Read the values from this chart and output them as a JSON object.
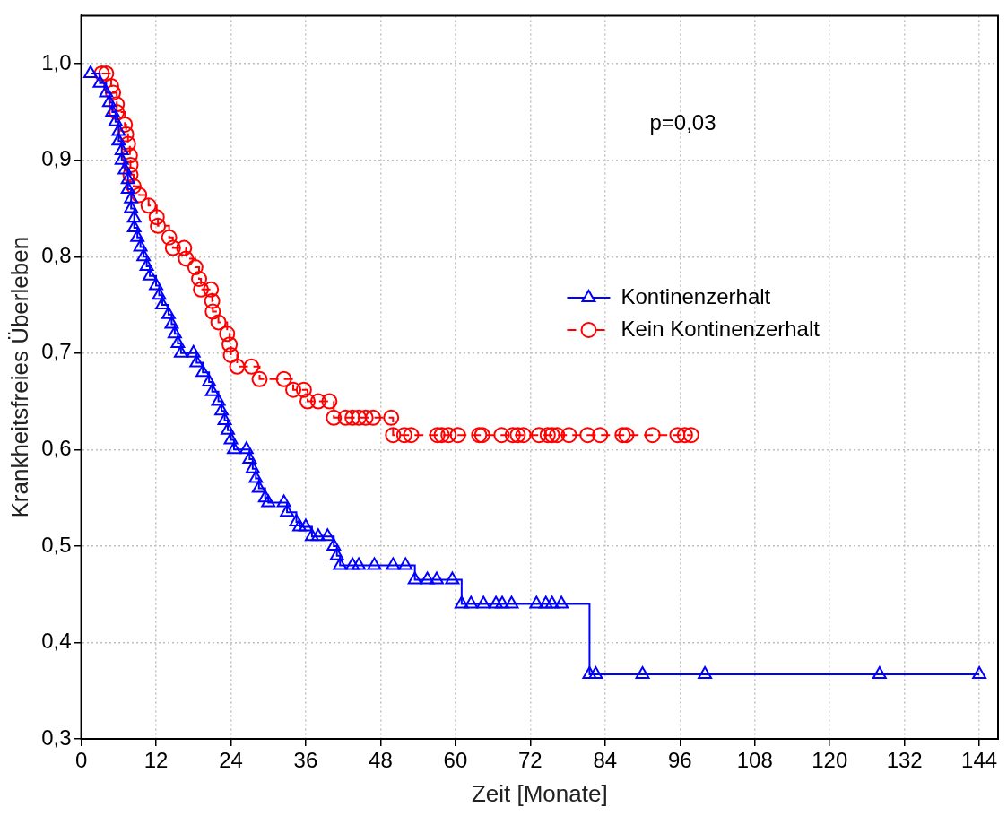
{
  "chart_data": {
    "type": "step",
    "xlabel": "Zeit [Monate]",
    "ylabel": "Krankheitsfreies Überleben",
    "xlim": [
      0,
      147
    ],
    "ylim": [
      0.3,
      1.05
    ],
    "xticks": [
      0,
      12,
      24,
      36,
      48,
      60,
      72,
      84,
      96,
      108,
      120,
      132,
      144
    ],
    "yticks": [
      {
        "value": 0.3,
        "label": "0,3"
      },
      {
        "value": 0.4,
        "label": "0,4"
      },
      {
        "value": 0.5,
        "label": "0,5"
      },
      {
        "value": 0.6,
        "label": "0,6"
      },
      {
        "value": 0.7,
        "label": "0,7"
      },
      {
        "value": 0.8,
        "label": "0,8"
      },
      {
        "value": 0.9,
        "label": "0,9"
      },
      {
        "value": 1.0,
        "label": "1,0"
      }
    ],
    "grid": true,
    "legend": "right",
    "annotations": [
      "p=0,03"
    ],
    "series": [
      {
        "name": "Kontinenzerhalt",
        "color": "#0000ff",
        "marker": "triangle",
        "line_style": "solid",
        "x": [
          1.5,
          3,
          4,
          4.5,
          5,
          5.5,
          6,
          6,
          6.5,
          6.5,
          7,
          7.5,
          7.5,
          8,
          8,
          8.5,
          8.5,
          9,
          9.5,
          10,
          10.5,
          11,
          12,
          12.5,
          13,
          14,
          14.5,
          15,
          15.5,
          16,
          18,
          18.5,
          19.5,
          20.5,
          21,
          22,
          22.5,
          23,
          23.5,
          24,
          24.5,
          26.5,
          27,
          27.5,
          28,
          28.5,
          29.5,
          30,
          32.5,
          33,
          34.5,
          35,
          36,
          37,
          38,
          39.5,
          40.5,
          41,
          41.5,
          43.5,
          44.5,
          47,
          50,
          52,
          53.5,
          55.5,
          57,
          59.5,
          61,
          62.5,
          64.5,
          66.5,
          67.5,
          69,
          73,
          74.5,
          75.5,
          77,
          81.5,
          82.5,
          90,
          100,
          128,
          144
        ],
        "values": [
          0.99,
          0.98,
          0.97,
          0.96,
          0.95,
          0.94,
          0.93,
          0.92,
          0.91,
          0.9,
          0.89,
          0.88,
          0.87,
          0.86,
          0.85,
          0.84,
          0.83,
          0.82,
          0.81,
          0.8,
          0.79,
          0.78,
          0.77,
          0.76,
          0.75,
          0.74,
          0.73,
          0.72,
          0.71,
          0.7,
          0.7,
          0.69,
          0.68,
          0.67,
          0.66,
          0.65,
          0.64,
          0.63,
          0.62,
          0.61,
          0.6,
          0.6,
          0.59,
          0.58,
          0.57,
          0.56,
          0.55,
          0.545,
          0.545,
          0.535,
          0.525,
          0.52,
          0.52,
          0.51,
          0.51,
          0.51,
          0.5,
          0.49,
          0.48,
          0.48,
          0.48,
          0.48,
          0.48,
          0.48,
          0.465,
          0.465,
          0.465,
          0.465,
          0.44,
          0.44,
          0.44,
          0.44,
          0.44,
          0.44,
          0.44,
          0.44,
          0.44,
          0.44,
          0.367,
          0.367,
          0.367,
          0.367,
          0.367,
          0.367
        ]
      },
      {
        "name": "Kein Kontinenzerhalt",
        "color": "#ff0000",
        "marker": "circle",
        "line_style": "dashed",
        "x": [
          3.3,
          4,
          4.8,
          5.1,
          5.7,
          5.7,
          7,
          7.2,
          7.5,
          7.8,
          7.9,
          7.9,
          8.4,
          9.3,
          10.8,
          12.1,
          12.3,
          14.1,
          14.7,
          16.5,
          16.8,
          18.3,
          18.9,
          19.2,
          20.8,
          21,
          21.1,
          22,
          23.4,
          23.8,
          24,
          25,
          27.3,
          28.6,
          32.5,
          34,
          35.7,
          36.3,
          38,
          39.8,
          40.5,
          42.4,
          43.5,
          44.5,
          45.6,
          46.8,
          49.7,
          50,
          51.8,
          52.9,
          57.1,
          57.8,
          58.9,
          60.4,
          63.8,
          64.3,
          67.4,
          69.2,
          70,
          70.9,
          73.4,
          74.8,
          75.5,
          76.3,
          78.2,
          81.2,
          83.2,
          86.8,
          87.4,
          91.6,
          95.6,
          96.8,
          97.8
        ],
        "values": [
          0.99,
          0.99,
          0.977,
          0.97,
          0.958,
          0.95,
          0.937,
          0.927,
          0.917,
          0.905,
          0.895,
          0.885,
          0.873,
          0.864,
          0.853,
          0.841,
          0.832,
          0.82,
          0.809,
          0.809,
          0.798,
          0.789,
          0.777,
          0.766,
          0.766,
          0.754,
          0.743,
          0.732,
          0.72,
          0.709,
          0.698,
          0.686,
          0.686,
          0.673,
          0.673,
          0.662,
          0.662,
          0.65,
          0.65,
          0.65,
          0.633,
          0.633,
          0.633,
          0.633,
          0.633,
          0.633,
          0.633,
          0.615,
          0.615,
          0.615,
          0.615,
          0.615,
          0.615,
          0.615,
          0.615,
          0.615,
          0.615,
          0.615,
          0.615,
          0.615,
          0.615,
          0.615,
          0.615,
          0.615,
          0.615,
          0.615,
          0.615,
          0.615,
          0.615,
          0.615,
          0.615,
          0.615,
          0.615
        ]
      }
    ]
  }
}
